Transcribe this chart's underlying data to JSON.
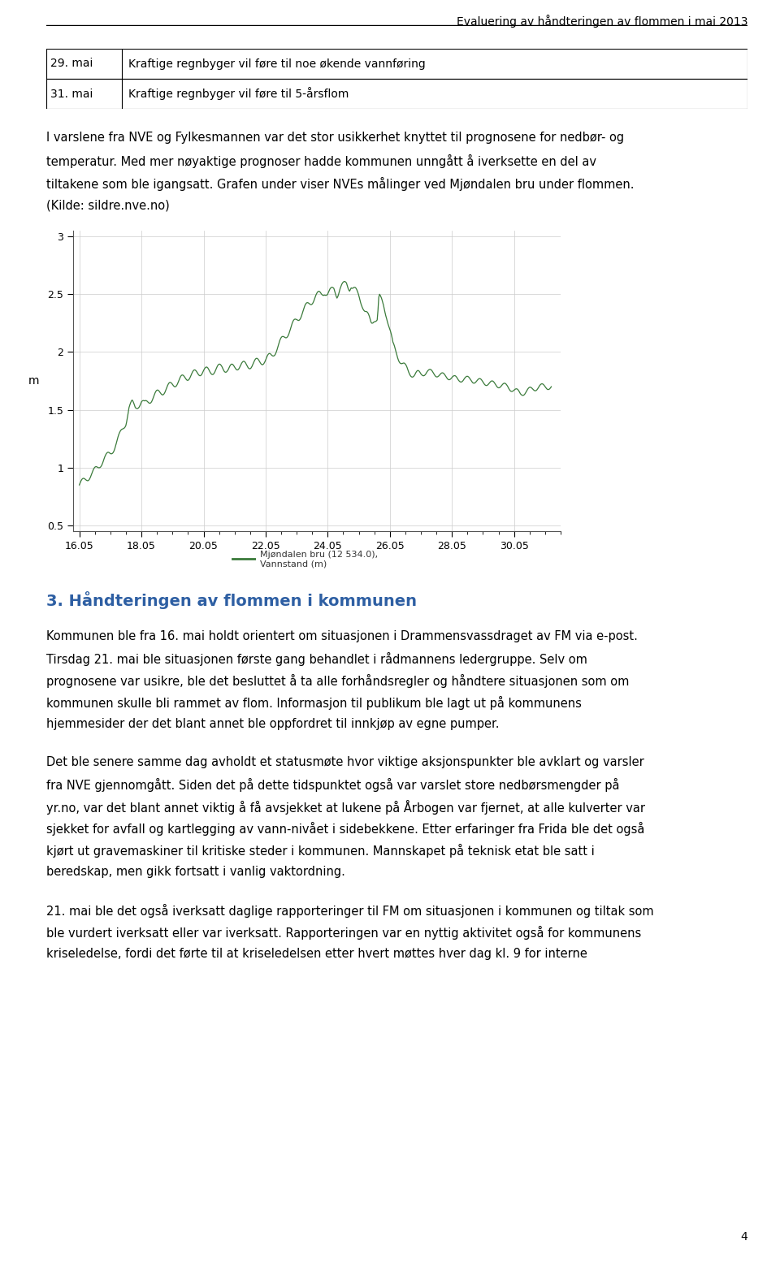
{
  "header": "Evaluering av håndteringen av flommen i mai 2013",
  "table_rows": [
    [
      "29. mai",
      "Kraftige regnbyger vil føre til noe økende vannføring"
    ],
    [
      "31. mai",
      "Kraftige regnbyger vil føre til 5-årsflom"
    ]
  ],
  "para1_lines": [
    "I varslene fra NVE og Fylkesmannen var det stor usikkerhet knyttet til prognosene for nedbør- og",
    "temperatur. Med mer nøyaktige prognoser hadde kommunen unngått å iverksette en del av",
    "tiltakene som ble igangsatt. Grafen under viser NVEs målinger ved Mjøndalen bru under flommen.",
    "(Kilde: sildre.nve.no)"
  ],
  "chart_ylabel": "m",
  "chart_yticks": [
    0.5,
    1.0,
    1.5,
    2.0,
    2.5,
    3.0
  ],
  "chart_xtick_labels": [
    "16.05",
    "18.05",
    "20.05",
    "22.05",
    "24.05",
    "26.05",
    "28.05",
    "30.05"
  ],
  "legend_label": "Mjøndalen bru (12 534.0),\nVannstand (m)",
  "line_color": "#3a7a3a",
  "section_heading": "3. Håndteringen av flommen i kommunen",
  "section_heading_color": "#2e5fa3",
  "para2_lines": [
    "Kommunen ble fra 16. mai holdt orientert om situasjonen i Drammensvassdraget av FM via e-post.",
    "Tirsdag 21. mai ble situasjonen første gang behandlet i rådmannens ledergruppe. Selv om",
    "prognosene var usikre, ble det besluttet å ta alle forhåndsregler og håndtere situasjonen som om",
    "kommunen skulle bli rammet av flom. Informasjon til publikum ble lagt ut på kommunens",
    "hjemmesider der det blant annet ble oppfordret til innkjøp av egne pumper."
  ],
  "para3_lines": [
    "Det ble senere samme dag avholdt et statusmøte hvor viktige aksjonspunkter ble avklart og varsler",
    "fra NVE gjennomgått. Siden det på dette tidspunktet også var varslet store nedbørsmengder på",
    "yr.no, var det blant annet viktig å få avsjekket at lukene på Årbogen var fjernet, at alle kulverter var",
    "sjekket for avfall og kartlegging av vann-nivået i sidebekkene. Etter erfaringer fra Frida ble det også",
    "kjørt ut gravemaskiner til kritiske steder i kommunen. Mannskapet på teknisk etat ble satt i",
    "beredskap, men gikk fortsatt i vanlig vaktordning."
  ],
  "para4_lines": [
    "21. mai ble det også iverksatt daglige rapporteringer til FM om situasjonen i kommunen og tiltak som",
    "ble vurdert iverksatt eller var iverksatt. Rapporteringen var en nyttig aktivitet også for kommunens",
    "kriseledelse, fordi det førte til at kriseledelsen etter hvert møttes hver dag kl. 9 for interne"
  ],
  "page_number": "4",
  "bg_color": "#ffffff",
  "text_color": "#000000",
  "grid_color": "#cccccc",
  "chart_ylim": [
    0.45,
    3.05
  ],
  "chart_xlim": [
    15.8,
    31.5
  ],
  "fig_width": 9.6,
  "fig_height": 15.65,
  "dpi": 100
}
